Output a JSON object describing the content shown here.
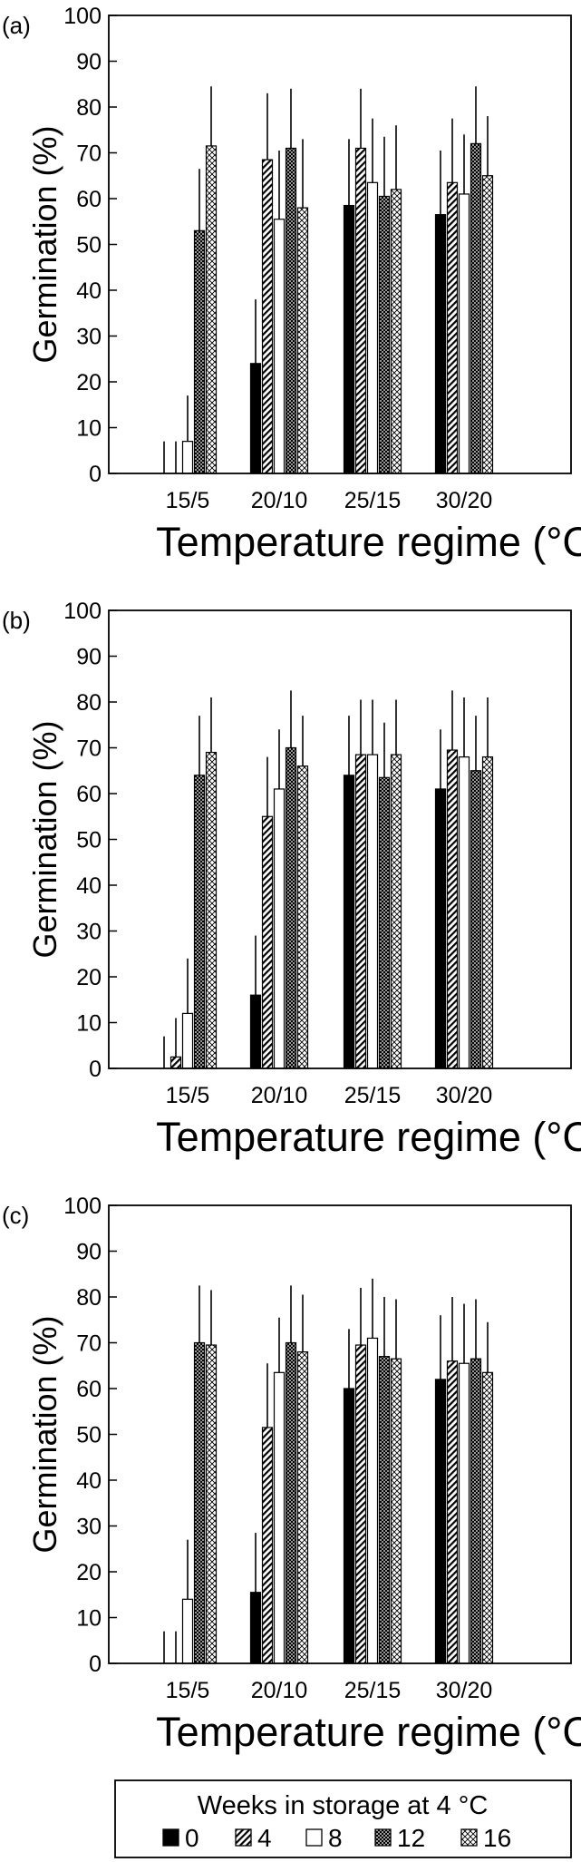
{
  "chart_data": [
    {
      "type": "bar",
      "panel_label": "(a)",
      "xlabel": "Temperature regime (°C)",
      "ylabel": "Germination (%)",
      "ylim": [
        0,
        100
      ],
      "yticks": [
        0,
        10,
        20,
        30,
        40,
        50,
        60,
        70,
        80,
        90,
        100
      ],
      "categories": [
        "15/5",
        "20/10",
        "25/15",
        "30/20"
      ],
      "series": [
        {
          "name": "0",
          "values": [
            0,
            24,
            58.5,
            56.5
          ],
          "errors": [
            7,
            14,
            14.5,
            14
          ]
        },
        {
          "name": "4",
          "values": [
            0,
            68.5,
            71,
            63.5
          ],
          "errors": [
            7,
            14.5,
            13,
            14
          ]
        },
        {
          "name": "8",
          "values": [
            7,
            55.5,
            63.5,
            61
          ],
          "errors": [
            10,
            15,
            14,
            13
          ]
        },
        {
          "name": "12",
          "values": [
            53,
            71,
            60.5,
            72
          ],
          "errors": [
            13.5,
            13,
            13,
            12.5
          ]
        },
        {
          "name": "16",
          "values": [
            71.5,
            58,
            62,
            65
          ],
          "errors": [
            13,
            15,
            14,
            13
          ]
        }
      ]
    },
    {
      "type": "bar",
      "panel_label": "(b)",
      "xlabel": "Temperature regime (°C)",
      "ylabel": "Germination (%)",
      "ylim": [
        0,
        100
      ],
      "yticks": [
        0,
        10,
        20,
        30,
        40,
        50,
        60,
        70,
        80,
        90,
        100
      ],
      "categories": [
        "15/5",
        "20/10",
        "25/15",
        "30/20"
      ],
      "series": [
        {
          "name": "0",
          "values": [
            0,
            16,
            64,
            61
          ],
          "errors": [
            7,
            13,
            13,
            13
          ]
        },
        {
          "name": "4",
          "values": [
            2.5,
            55,
            68.5,
            69.5
          ],
          "errors": [
            8.5,
            13,
            12,
            13
          ]
        },
        {
          "name": "8",
          "values": [
            12,
            61,
            68.5,
            68
          ],
          "errors": [
            12,
            13,
            12,
            13
          ]
        },
        {
          "name": "12",
          "values": [
            64,
            70,
            63.5,
            65
          ],
          "errors": [
            13,
            12.5,
            12,
            12
          ]
        },
        {
          "name": "16",
          "values": [
            69,
            66,
            68.5,
            68
          ],
          "errors": [
            12,
            11,
            12,
            13
          ]
        }
      ]
    },
    {
      "type": "bar",
      "panel_label": "(c)",
      "xlabel": "Temperature regime (°C)",
      "ylabel": "Germination (%)",
      "ylim": [
        0,
        100
      ],
      "yticks": [
        0,
        10,
        20,
        30,
        40,
        50,
        60,
        70,
        80,
        90,
        100
      ],
      "categories": [
        "15/5",
        "20/10",
        "25/15",
        "30/20"
      ],
      "series": [
        {
          "name": "0",
          "values": [
            0,
            15.5,
            60,
            62
          ],
          "errors": [
            7,
            13,
            13,
            14
          ]
        },
        {
          "name": "4",
          "values": [
            0,
            51.5,
            69.5,
            66
          ],
          "errors": [
            7,
            14,
            12.5,
            14
          ]
        },
        {
          "name": "8",
          "values": [
            14,
            63.5,
            71,
            65.5
          ],
          "errors": [
            13,
            12,
            13,
            13
          ]
        },
        {
          "name": "12",
          "values": [
            70,
            70,
            67,
            66.5
          ],
          "errors": [
            12.5,
            12.5,
            13,
            13
          ]
        },
        {
          "name": "16",
          "values": [
            69.5,
            68,
            66.5,
            63.5
          ],
          "errors": [
            12,
            12.5,
            13,
            11
          ]
        }
      ]
    }
  ],
  "legend": {
    "title": "Weeks in storage at 4 °C",
    "position": "bottom",
    "entries": [
      "0",
      "4",
      "8",
      "12",
      "16"
    ],
    "patterns": [
      "solid",
      "diagonal-hatch",
      "open",
      "dense-crosshatch",
      "crosshatch"
    ]
  }
}
